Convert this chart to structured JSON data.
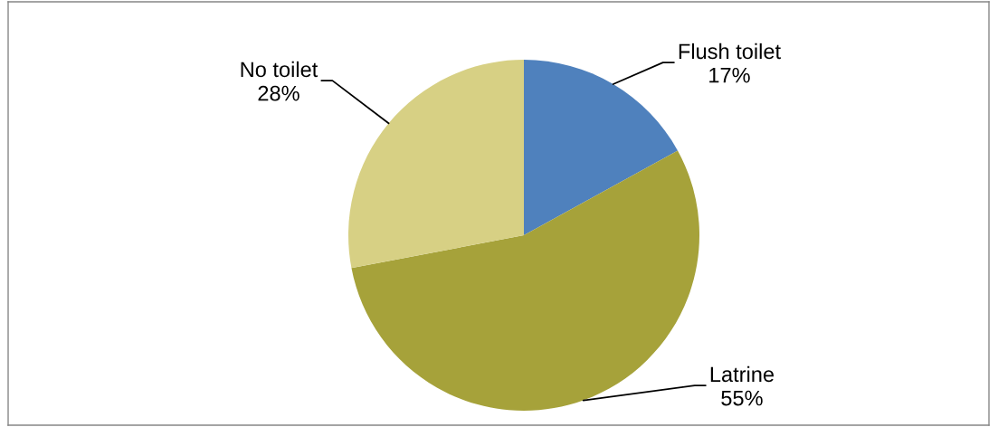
{
  "chart_data": {
    "type": "pie",
    "categories": [
      "Flush toilet",
      "Latrine",
      "No toilet"
    ],
    "values": [
      17,
      55,
      28
    ],
    "colors": [
      "#4f81bd",
      "#a6a23a",
      "#d7d084"
    ],
    "value_labels": [
      "17%",
      "55%",
      "28%"
    ]
  }
}
